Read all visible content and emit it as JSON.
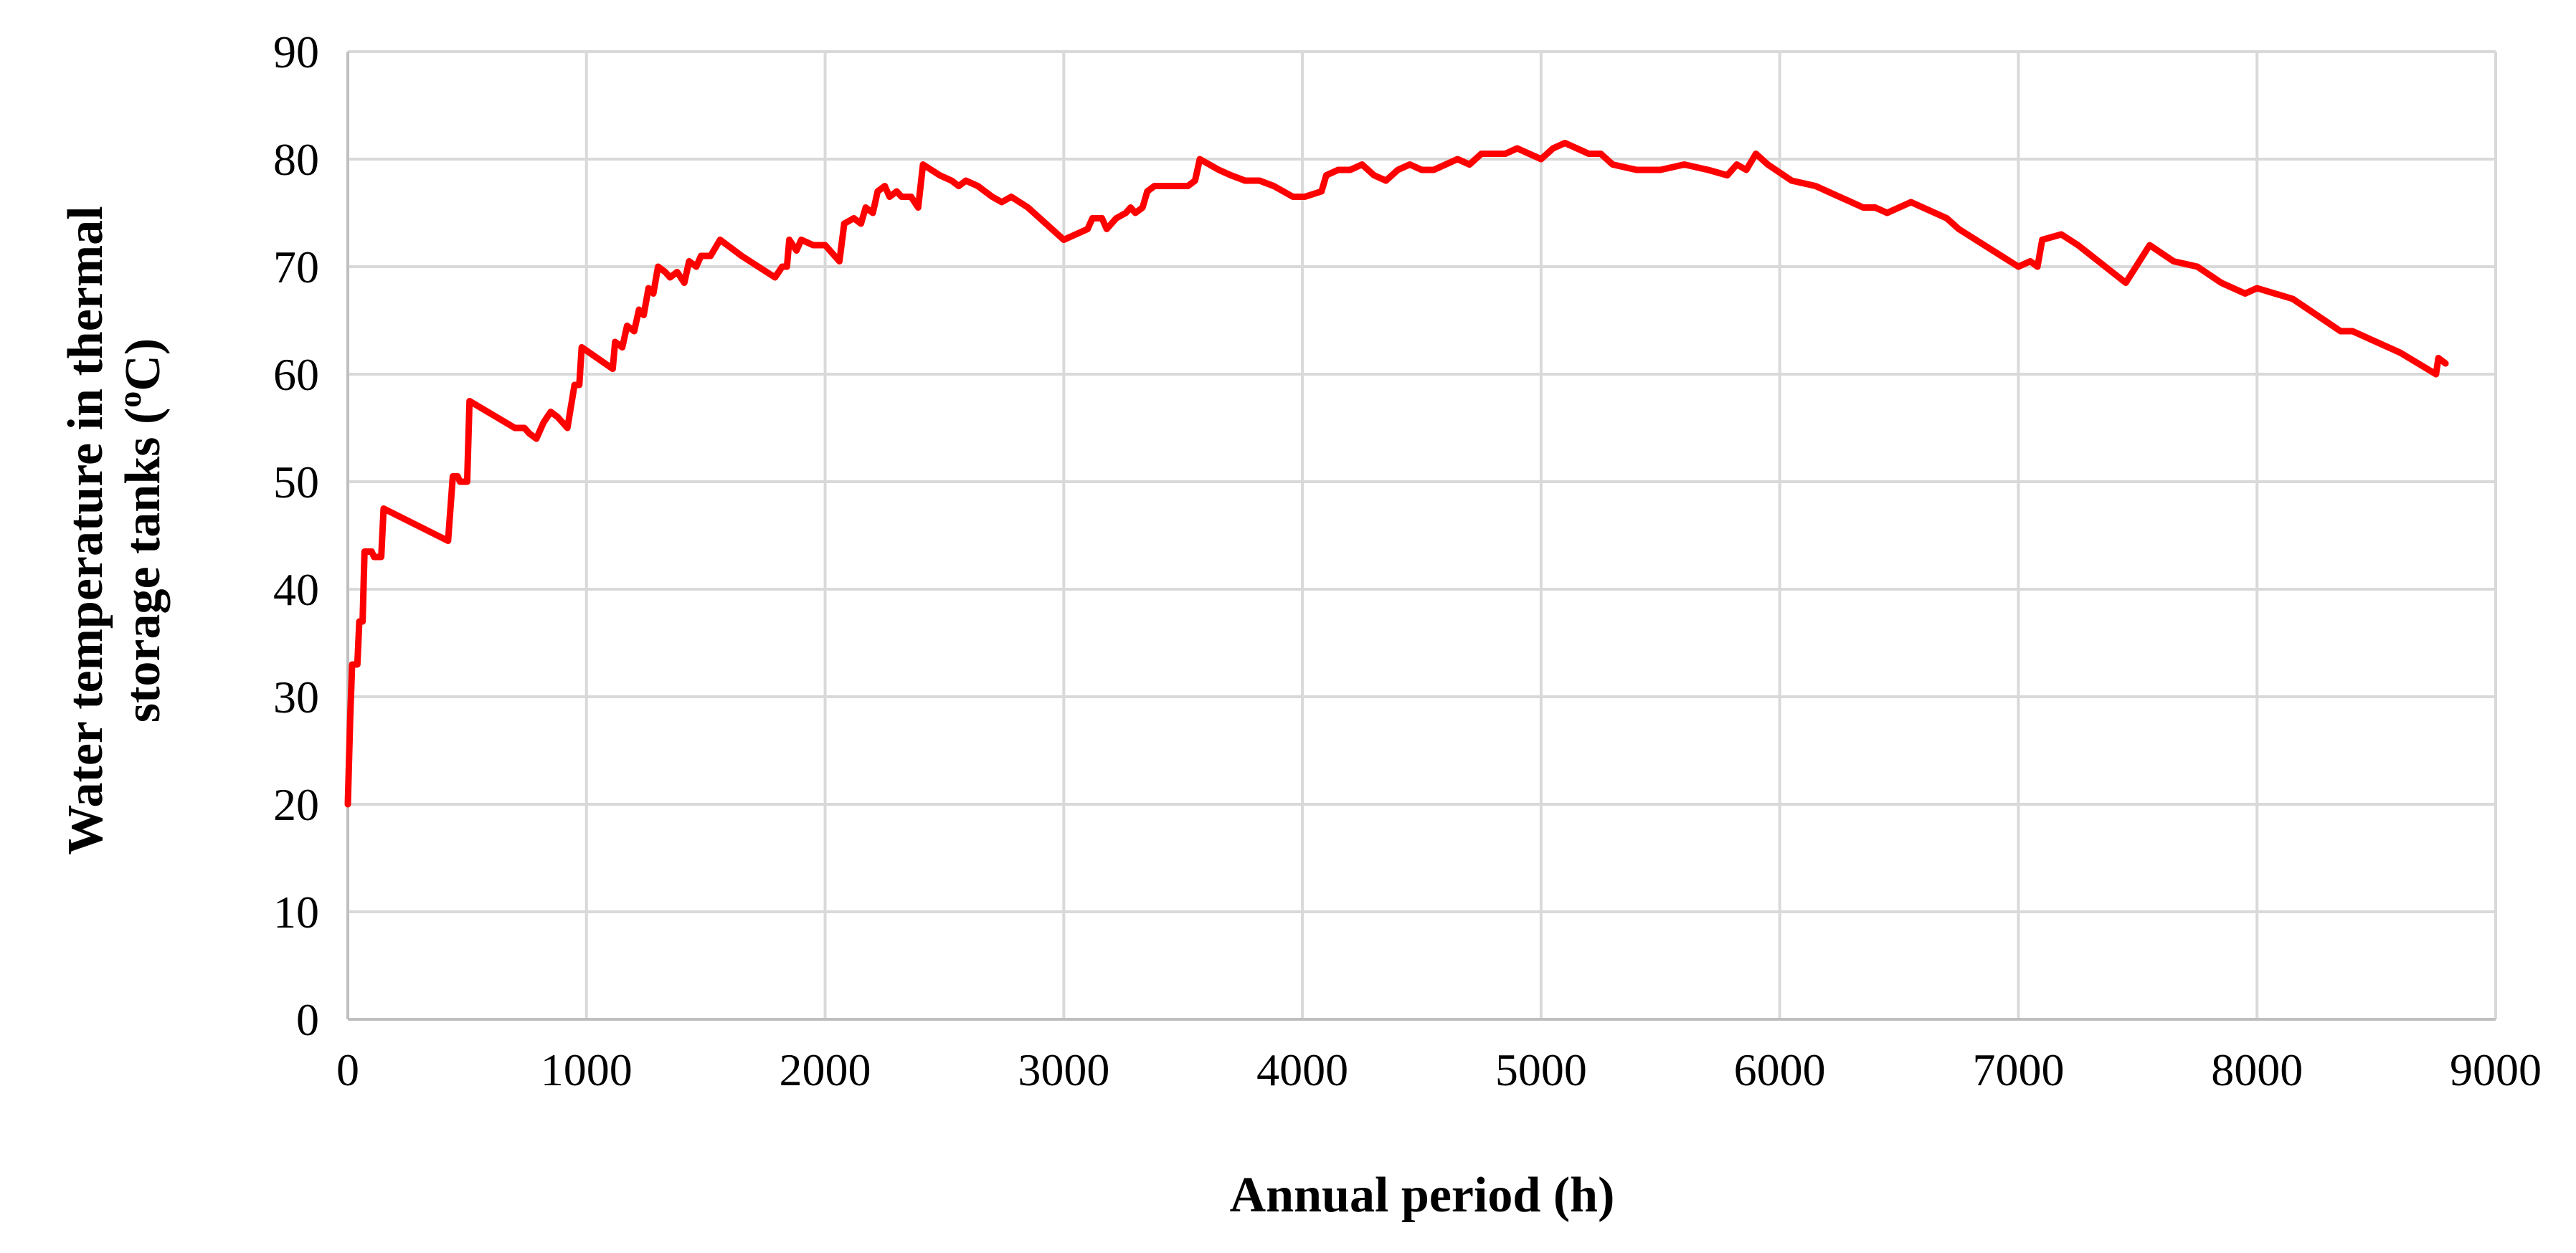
{
  "chart_data": {
    "type": "line",
    "title": "",
    "xlabel": "Annual period (h)",
    "ylabel_line1": "Water temperature in thermal",
    "ylabel_line2": "storage tanks (",
    "ylabel_sup": "o",
    "ylabel_tail": "C)",
    "xlim": [
      0,
      9000
    ],
    "ylim": [
      0,
      90
    ],
    "x_ticks": [
      "0",
      "1000",
      "2000",
      "3000",
      "4000",
      "5000",
      "6000",
      "7000",
      "8000",
      "9000"
    ],
    "y_ticks": [
      "0",
      "10",
      "20",
      "30",
      "40",
      "50",
      "60",
      "70",
      "80",
      "90"
    ],
    "grid": true,
    "legend": "none",
    "series": [
      {
        "color": "#ff0000",
        "points": [
          [
            0,
            20
          ],
          [
            10,
            28
          ],
          [
            18,
            33
          ],
          [
            40,
            33
          ],
          [
            48,
            37
          ],
          [
            62,
            37
          ],
          [
            70,
            43.5
          ],
          [
            100,
            43.5
          ],
          [
            110,
            43
          ],
          [
            140,
            43
          ],
          [
            150,
            47.5
          ],
          [
            420,
            44.5
          ],
          [
            440,
            50.5
          ],
          [
            460,
            50.5
          ],
          [
            470,
            50
          ],
          [
            500,
            50
          ],
          [
            510,
            57.5
          ],
          [
            700,
            55
          ],
          [
            740,
            55
          ],
          [
            760,
            54.5
          ],
          [
            790,
            54
          ],
          [
            820,
            55.5
          ],
          [
            850,
            56.5
          ],
          [
            880,
            56
          ],
          [
            920,
            55
          ],
          [
            950,
            59
          ],
          [
            970,
            59
          ],
          [
            980,
            62.5
          ],
          [
            1110,
            60.5
          ],
          [
            1120,
            63
          ],
          [
            1150,
            62.5
          ],
          [
            1170,
            64.5
          ],
          [
            1200,
            64
          ],
          [
            1220,
            66
          ],
          [
            1240,
            65.5
          ],
          [
            1260,
            68
          ],
          [
            1280,
            67.5
          ],
          [
            1300,
            70
          ],
          [
            1330,
            69.5
          ],
          [
            1350,
            69
          ],
          [
            1380,
            69.5
          ],
          [
            1410,
            68.5
          ],
          [
            1430,
            70.5
          ],
          [
            1460,
            70
          ],
          [
            1480,
            71
          ],
          [
            1520,
            71
          ],
          [
            1560,
            72.5
          ],
          [
            1650,
            71
          ],
          [
            1790,
            69
          ],
          [
            1820,
            70
          ],
          [
            1840,
            70
          ],
          [
            1850,
            72.5
          ],
          [
            1880,
            71.5
          ],
          [
            1900,
            72.5
          ],
          [
            1950,
            72
          ],
          [
            2000,
            72
          ],
          [
            2060,
            70.5
          ],
          [
            2080,
            74
          ],
          [
            2120,
            74.5
          ],
          [
            2150,
            74
          ],
          [
            2170,
            75.5
          ],
          [
            2200,
            75
          ],
          [
            2220,
            77
          ],
          [
            2250,
            77.5
          ],
          [
            2270,
            76.5
          ],
          [
            2300,
            77
          ],
          [
            2320,
            76.5
          ],
          [
            2360,
            76.5
          ],
          [
            2390,
            75.5
          ],
          [
            2410,
            79.5
          ],
          [
            2480,
            78.5
          ],
          [
            2530,
            78
          ],
          [
            2560,
            77.5
          ],
          [
            2590,
            78
          ],
          [
            2640,
            77.5
          ],
          [
            2700,
            76.5
          ],
          [
            2740,
            76
          ],
          [
            2780,
            76.5
          ],
          [
            2850,
            75.5
          ],
          [
            3000,
            72.5
          ],
          [
            3050,
            73
          ],
          [
            3100,
            73.5
          ],
          [
            3120,
            74.5
          ],
          [
            3160,
            74.5
          ],
          [
            3180,
            73.5
          ],
          [
            3220,
            74.5
          ],
          [
            3260,
            75
          ],
          [
            3280,
            75.5
          ],
          [
            3300,
            75
          ],
          [
            3330,
            75.5
          ],
          [
            3350,
            77
          ],
          [
            3380,
            77.5
          ],
          [
            3420,
            77.5
          ],
          [
            3520,
            77.5
          ],
          [
            3550,
            78
          ],
          [
            3570,
            80
          ],
          [
            3650,
            79
          ],
          [
            3700,
            78.5
          ],
          [
            3760,
            78
          ],
          [
            3820,
            78
          ],
          [
            3880,
            77.5
          ],
          [
            3960,
            76.5
          ],
          [
            4010,
            76.5
          ],
          [
            4080,
            77
          ],
          [
            4100,
            78.5
          ],
          [
            4150,
            79
          ],
          [
            4200,
            79
          ],
          [
            4250,
            79.5
          ],
          [
            4300,
            78.5
          ],
          [
            4350,
            78
          ],
          [
            4400,
            79
          ],
          [
            4450,
            79.5
          ],
          [
            4500,
            79
          ],
          [
            4550,
            79
          ],
          [
            4600,
            79.5
          ],
          [
            4650,
            80
          ],
          [
            4700,
            79.5
          ],
          [
            4750,
            80.5
          ],
          [
            4800,
            80.5
          ],
          [
            4850,
            80.5
          ],
          [
            4900,
            81
          ],
          [
            4950,
            80.5
          ],
          [
            5000,
            80
          ],
          [
            5050,
            81
          ],
          [
            5100,
            81.5
          ],
          [
            5150,
            81
          ],
          [
            5200,
            80.5
          ],
          [
            5250,
            80.5
          ],
          [
            5300,
            79.5
          ],
          [
            5400,
            79
          ],
          [
            5500,
            79
          ],
          [
            5600,
            79.5
          ],
          [
            5700,
            79
          ],
          [
            5780,
            78.5
          ],
          [
            5820,
            79.5
          ],
          [
            5860,
            79
          ],
          [
            5900,
            80.5
          ],
          [
            5950,
            79.5
          ],
          [
            6050,
            78
          ],
          [
            6150,
            77.5
          ],
          [
            6200,
            77
          ],
          [
            6300,
            76
          ],
          [
            6350,
            75.5
          ],
          [
            6400,
            75.5
          ],
          [
            6450,
            75
          ],
          [
            6500,
            75.5
          ],
          [
            6550,
            76
          ],
          [
            6600,
            75.5
          ],
          [
            6650,
            75
          ],
          [
            6700,
            74.5
          ],
          [
            6750,
            73.5
          ],
          [
            7000,
            70
          ],
          [
            7050,
            70.5
          ],
          [
            7080,
            70
          ],
          [
            7100,
            72.5
          ],
          [
            7180,
            73
          ],
          [
            7250,
            72
          ],
          [
            7450,
            68.5
          ],
          [
            7550,
            72
          ],
          [
            7650,
            70.5
          ],
          [
            7750,
            70
          ],
          [
            7850,
            68.5
          ],
          [
            7950,
            67.5
          ],
          [
            8000,
            68
          ],
          [
            8150,
            67
          ],
          [
            8350,
            64
          ],
          [
            8400,
            64
          ],
          [
            8500,
            63
          ],
          [
            8600,
            62
          ],
          [
            8750,
            60
          ],
          [
            8760,
            61.5
          ],
          [
            8790,
            61
          ]
        ]
      }
    ]
  }
}
